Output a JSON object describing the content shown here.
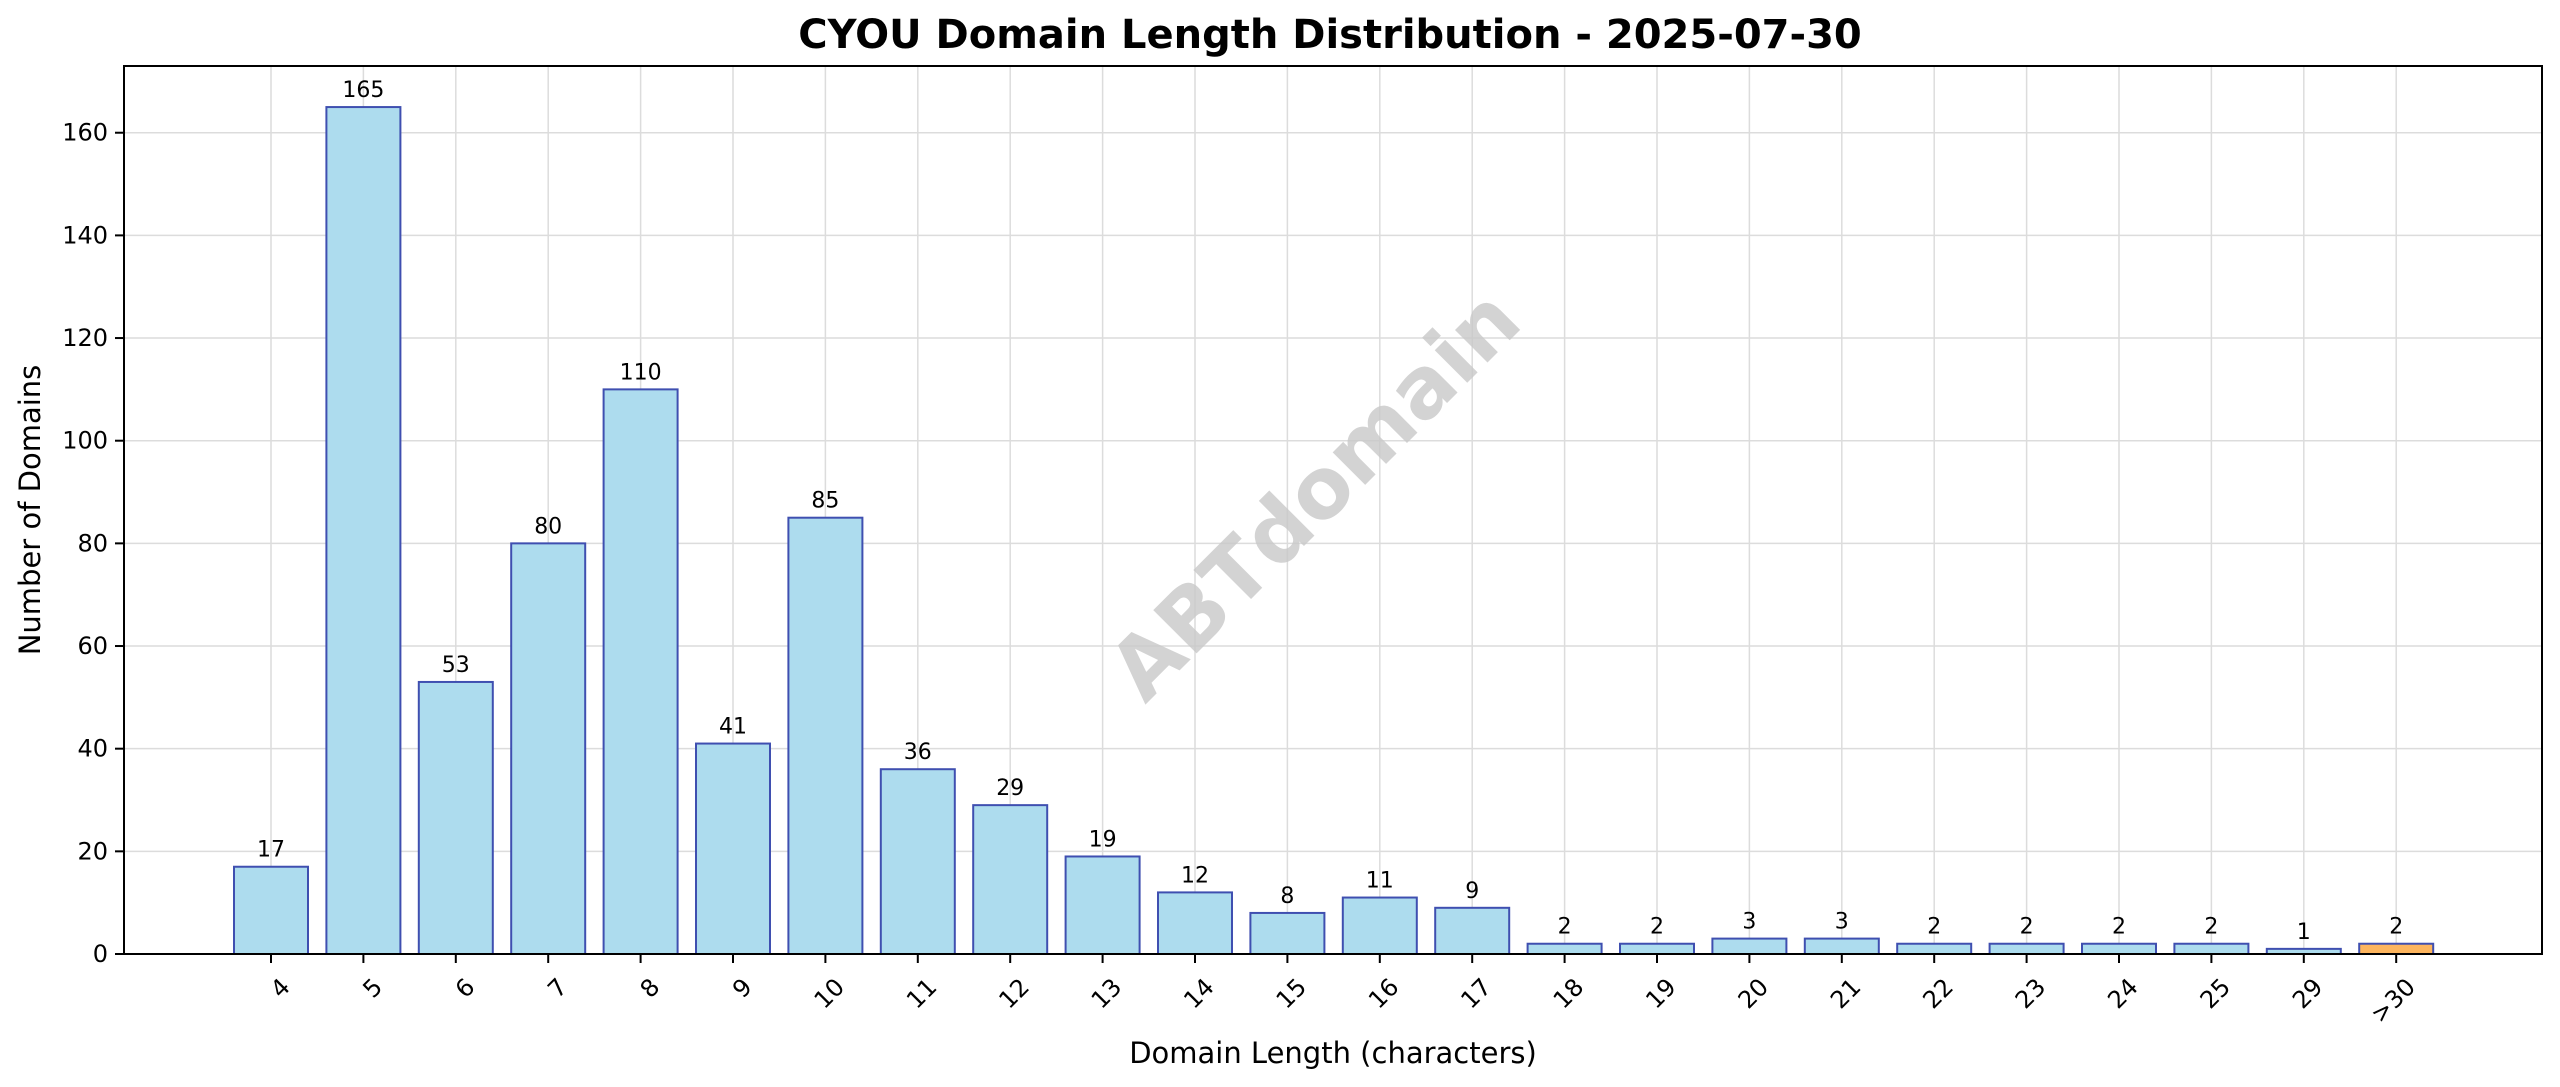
{
  "chart_data": {
    "type": "bar",
    "title": "CYOU Domain Length Distribution - 2025-07-30",
    "xlabel": "Domain Length (characters)",
    "ylabel": "Number of Domains",
    "categories": [
      "4",
      "5",
      "6",
      "7",
      "8",
      "9",
      "10",
      "11",
      "12",
      "13",
      "14",
      "15",
      "16",
      "17",
      "18",
      "19",
      "20",
      "21",
      "22",
      "23",
      "24",
      "25",
      "29",
      ">30"
    ],
    "values": [
      17,
      165,
      53,
      80,
      110,
      41,
      85,
      36,
      29,
      19,
      12,
      8,
      11,
      9,
      2,
      2,
      3,
      3,
      2,
      2,
      2,
      2,
      1,
      2
    ],
    "ylim": [
      0,
      173
    ],
    "yticks": [
      0,
      20,
      40,
      60,
      80,
      100,
      120,
      140,
      160
    ],
    "grid": true,
    "watermark": "ABTdomain",
    "colors": {
      "bar_fill": "#ADDCEE",
      "bar_edge": "#3F4FB0",
      "highlight_fill": "#FDB55E",
      "highlight_edge": "#3F4FB0"
    },
    "highlight_categories": [
      ">30"
    ]
  }
}
